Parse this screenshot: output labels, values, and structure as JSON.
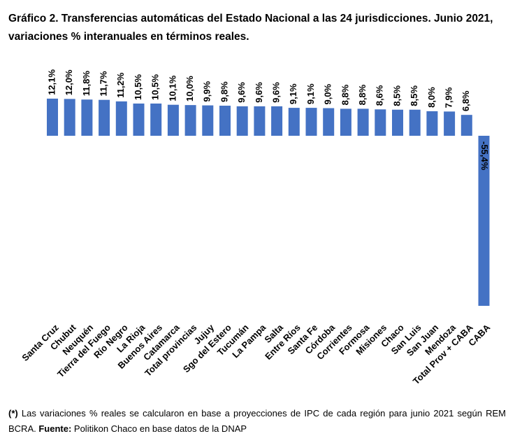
{
  "title_line1": "Gráfico 2. Transferencias automáticas del Estado Nacional a las 24 jurisdicciones. Junio 2021,",
  "title_line2": "variaciones % interanuales en términos reales.",
  "note": {
    "mark": "(*)",
    "text1": " Las variaciones % reales se calcularon en base a proyecciones de IPC de cada región para junio 2021 según REM BCRA. ",
    "source_label": "Fuente:",
    "source_text": " Politikon Chaco en base datos de la DNAP"
  },
  "chart_data": {
    "type": "bar",
    "title": "",
    "xlabel": "",
    "ylabel": "",
    "categories": [
      "Santa Cruz",
      "Chubut",
      "Neuquén",
      "Tierra del Fuego",
      "Río Negro",
      "La Rioja",
      "Buenos Aires",
      "Catamarca",
      "Total provincias",
      "Jujuy",
      "Sgo del Estero",
      "Tucumán",
      "La Pampa",
      "Salta",
      "Entre Ríos",
      "Santa Fe",
      "Córdoba",
      "Corrientes",
      "Formosa",
      "Misiones",
      "Chaco",
      "San Luis",
      "San Juan",
      "Mendoza",
      "Total Prov + CABA",
      "CABA"
    ],
    "values": [
      12.1,
      12.0,
      11.8,
      11.7,
      11.2,
      10.5,
      10.5,
      10.1,
      10.0,
      9.9,
      9.8,
      9.6,
      9.6,
      9.6,
      9.1,
      9.1,
      9.0,
      8.8,
      8.8,
      8.6,
      8.5,
      8.5,
      8.0,
      7.9,
      6.8,
      -55.4
    ],
    "labels": [
      "12,1%",
      "12,0%",
      "11,8%",
      "11,7%",
      "11,2%",
      "10,5%",
      "10,5%",
      "10,1%",
      "10,0%",
      "9,9%",
      "9,8%",
      "9,6%",
      "9,6%",
      "9,6%",
      "9,1%",
      "9,1%",
      "9,0%",
      "8,8%",
      "8,8%",
      "8,6%",
      "8,5%",
      "8,5%",
      "8,0%",
      "7,9%",
      "6,8%",
      "-55,4%"
    ],
    "bar_color": "#4472C4",
    "grid": false,
    "legend": "none"
  }
}
